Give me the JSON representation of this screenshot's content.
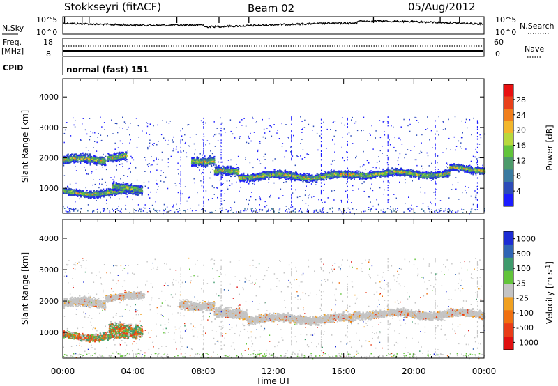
{
  "header": {
    "title": "Stokkseyri (fitACF)",
    "beam": "Beam 02",
    "date": "05/Aug/2012"
  },
  "top_panels": {
    "nsky": {
      "label": "N.Sky",
      "tick_top": "10^5",
      "tick_bottom": "10^0",
      "right_label": "N.Search",
      "right_tick_top": "10^5",
      "right_tick_bottom": "10^0"
    },
    "freq": {
      "label_line1": "Freq.",
      "label_line2": "[MHz]",
      "tick_top": "18",
      "tick_bottom": "8",
      "right_label": "Nave",
      "right_tick_top": "60",
      "right_tick_bottom": "0"
    },
    "cpid": {
      "label": "CPID",
      "text": "normal (fast) 151"
    }
  },
  "x_axis": {
    "label": "Time UT",
    "ticks": [
      "00:00",
      "04:00",
      "08:00",
      "12:00",
      "16:00",
      "20:00",
      "00:00"
    ]
  },
  "chart_data": [
    {
      "type": "heatmap",
      "name": "power",
      "ylabel": "Slant Range [km]",
      "xlabel": "Time UT",
      "xlim": [
        0,
        24
      ],
      "ylim": [
        180,
        4600
      ],
      "yticks": [
        1000,
        2000,
        3000,
        4000
      ],
      "colorbar_label": "Power [dB]",
      "colorbar_ticks": [
        "4",
        "8",
        "12",
        "16",
        "20",
        "24",
        "28"
      ],
      "colorbar_colors": [
        "#1c1cff",
        "#2c4bb8",
        "#3a7aa0",
        "#4c9a6a",
        "#62c43a",
        "#b8d83c",
        "#f2b62c",
        "#f07e1c",
        "#e8401a",
        "#e81010"
      ],
      "bands": [
        {
          "t0": 0.0,
          "t1": 2.4,
          "center": 1950,
          "width": 200
        },
        {
          "t0": 2.5,
          "t1": 3.6,
          "center": 2050,
          "width": 180
        },
        {
          "t0": 0.0,
          "t1": 4.3,
          "center": 880,
          "width": 150
        },
        {
          "t0": 2.8,
          "t1": 4.5,
          "center": 1020,
          "width": 180
        },
        {
          "t0": 7.3,
          "t1": 8.6,
          "center": 1950,
          "width": 220
        },
        {
          "t0": 8.6,
          "t1": 10.0,
          "center": 1550,
          "width": 200
        },
        {
          "t0": 10.0,
          "t1": 16.5,
          "center": 1420,
          "width": 170
        },
        {
          "t0": 16.5,
          "t1": 22.0,
          "center": 1500,
          "width": 150
        },
        {
          "t0": 22.0,
          "t1": 24.0,
          "center": 1650,
          "width": 160
        }
      ]
    },
    {
      "type": "heatmap",
      "name": "velocity",
      "ylabel": "Slant Range [km]",
      "xlabel": "Time UT",
      "xlim": [
        0,
        24
      ],
      "ylim": [
        180,
        4600
      ],
      "yticks": [
        1000,
        2000,
        3000,
        4000
      ],
      "colorbar_label": "Velocity [m s^-1]",
      "colorbar_ticks": [
        "1000",
        "500",
        "100",
        "25",
        "-25",
        "-100",
        "-500",
        "-1000"
      ],
      "colorbar_colors": [
        "#1c2cd4",
        "#2f64b4",
        "#3f9a6c",
        "#62c43a",
        "#c4c4c4",
        "#f0a020",
        "#f07010",
        "#e83c18",
        "#e01010"
      ],
      "bands": [
        {
          "t0": 0.0,
          "t1": 2.4,
          "center": 1950,
          "width": 200
        },
        {
          "t0": 2.4,
          "t1": 4.6,
          "center": 2150,
          "width": 150
        },
        {
          "t0": 0.0,
          "t1": 4.2,
          "center": 900,
          "width": 160
        },
        {
          "t0": 2.6,
          "t1": 4.5,
          "center": 1100,
          "width": 240
        },
        {
          "t0": 6.6,
          "t1": 8.6,
          "center": 1900,
          "width": 200
        },
        {
          "t0": 8.6,
          "t1": 10.5,
          "center": 1600,
          "width": 220
        },
        {
          "t0": 10.5,
          "t1": 16.5,
          "center": 1450,
          "width": 180
        },
        {
          "t0": 16.5,
          "t1": 24.0,
          "center": 1600,
          "width": 170
        }
      ]
    }
  ],
  "colors": {
    "trace": "#000000",
    "axes": "#000000",
    "background": "#ffffff"
  }
}
